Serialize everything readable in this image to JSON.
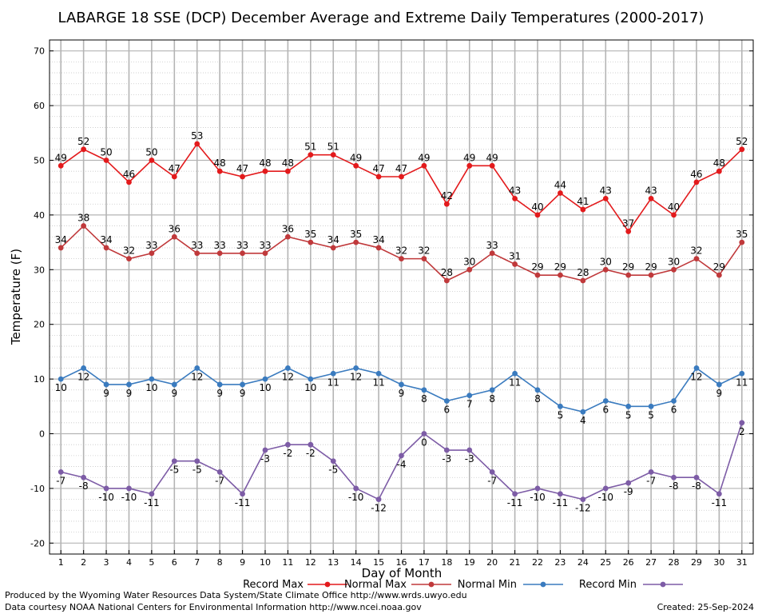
{
  "chart_data": {
    "type": "line",
    "title": "LABARGE 18 SSE (DCP) December Average and Extreme Daily Temperatures (2000-2017)",
    "xlabel": "Day of Month",
    "ylabel": "Temperature (F)",
    "x": [
      1,
      2,
      3,
      4,
      5,
      6,
      7,
      8,
      9,
      10,
      11,
      12,
      13,
      14,
      15,
      16,
      17,
      18,
      19,
      20,
      21,
      22,
      23,
      24,
      25,
      26,
      27,
      28,
      29,
      30,
      31
    ],
    "xlim": [
      0.5,
      31.5
    ],
    "ylim": [
      -22,
      72
    ],
    "yticks": [
      -20,
      -10,
      0,
      10,
      20,
      30,
      40,
      50,
      60,
      70
    ],
    "grid": true,
    "legend_position": "bottom",
    "series": [
      {
        "name": "Record Max",
        "color": "#e31a1c",
        "label_position": "above",
        "values": [
          49,
          52,
          50,
          46,
          50,
          47,
          53,
          48,
          47,
          48,
          48,
          51,
          51,
          49,
          47,
          47,
          49,
          42,
          49,
          49,
          43,
          40,
          44,
          41,
          43,
          37,
          43,
          40,
          46,
          48,
          52
        ]
      },
      {
        "name": "Normal Max",
        "color": "#c0393b",
        "label_position": "above",
        "values": [
          34,
          38,
          34,
          32,
          33,
          36,
          33,
          33,
          33,
          33,
          36,
          35,
          34,
          35,
          34,
          32,
          32,
          28,
          30,
          33,
          31,
          29,
          29,
          28,
          30,
          29,
          29,
          30,
          32,
          29,
          35
        ]
      },
      {
        "name": "Normal Min",
        "color": "#3a7bbf",
        "label_position": "below",
        "values": [
          10,
          12,
          9,
          9,
          10,
          9,
          12,
          9,
          9,
          10,
          12,
          10,
          11,
          12,
          11,
          9,
          8,
          6,
          7,
          8,
          11,
          8,
          5,
          4,
          6,
          5,
          5,
          6,
          12,
          9,
          11
        ]
      },
      {
        "name": "Record Min",
        "color": "#7d5ca6",
        "label_position": "below",
        "values": [
          -7,
          -8,
          -10,
          -10,
          -11,
          -5,
          -5,
          -7,
          -11,
          -3,
          -2,
          -2,
          -5,
          -10,
          -12,
          -4,
          0,
          -3,
          -3,
          -7,
          -11,
          -10,
          -11,
          -12,
          -10,
          -9,
          -7,
          -8,
          -8,
          -11,
          2
        ]
      }
    ]
  },
  "footer": {
    "line1": "Produced by the Wyoming Water Resources Data System/State Climate Office http://www.wrds.uwyo.edu",
    "line2": "Data courtesy NOAA National Centers for Environmental Information http://www.ncei.noaa.gov",
    "created": "Created:  25-Sep-2024"
  }
}
